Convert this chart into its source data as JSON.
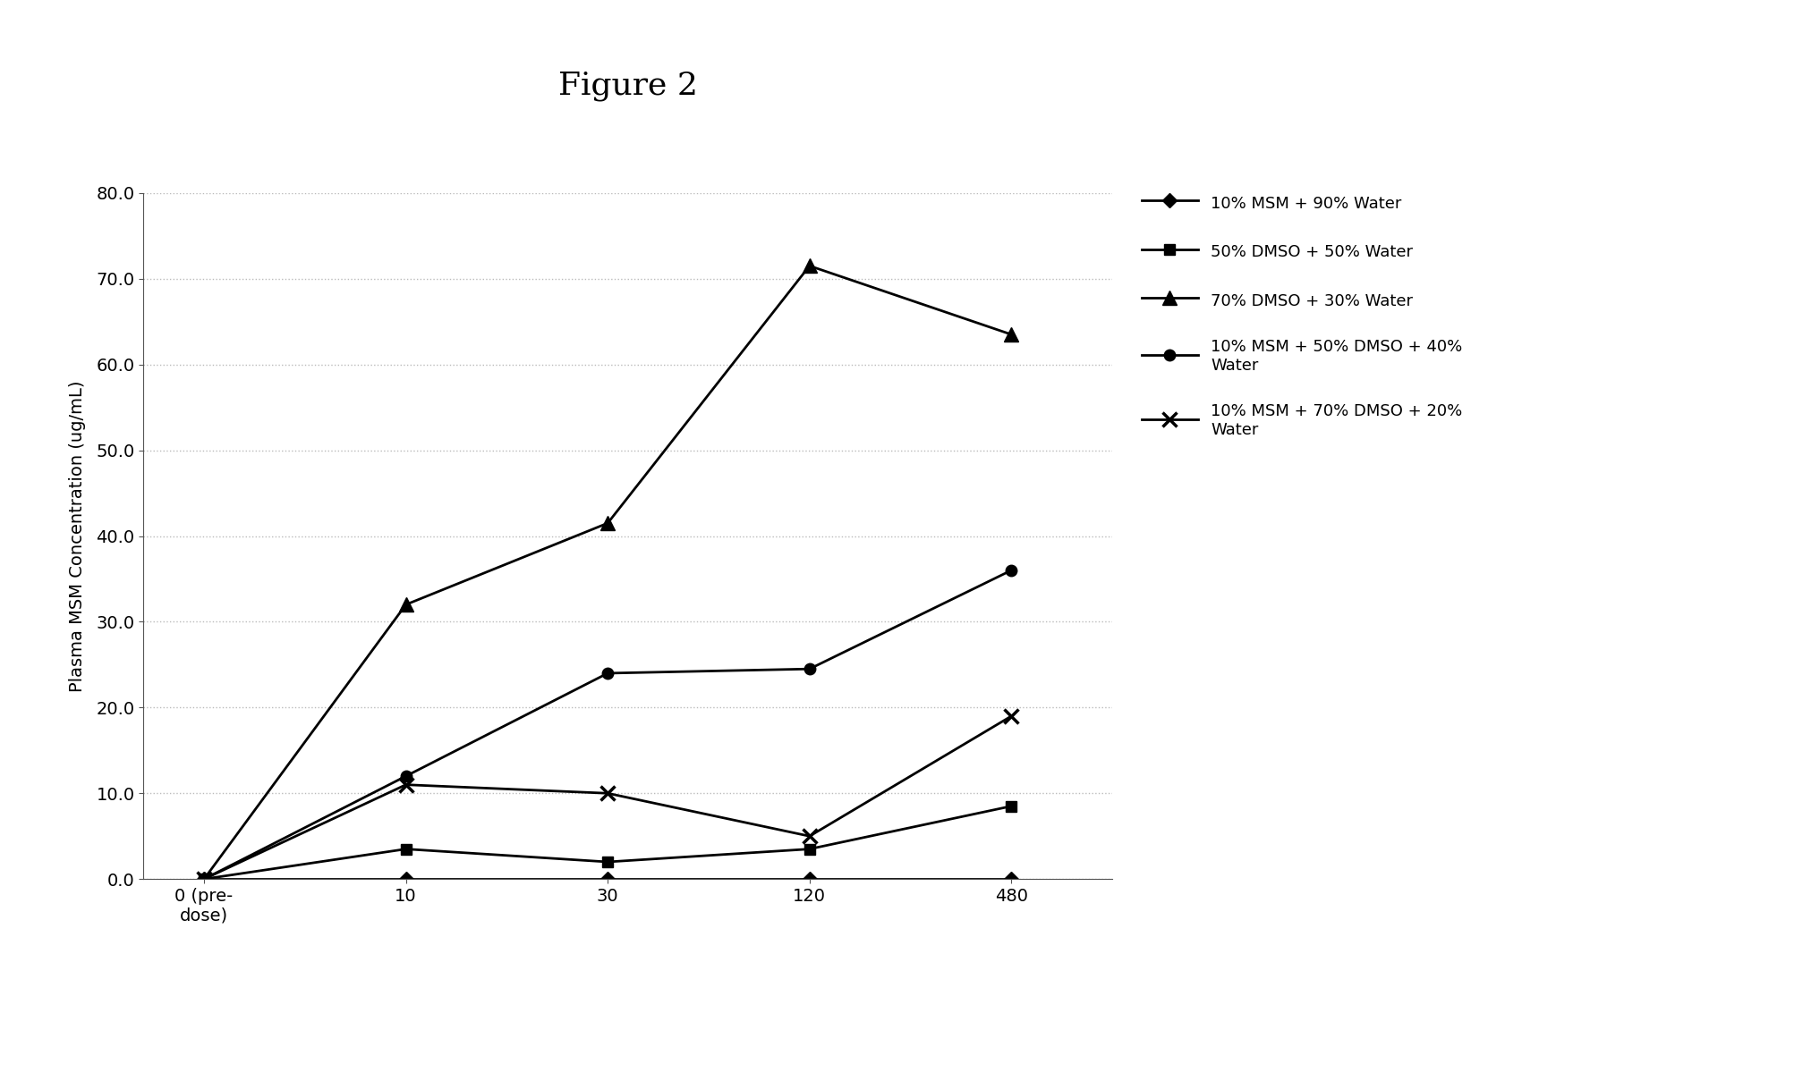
{
  "title": "Figure 2",
  "ylabel": "Plasma MSM Concentration (ug/mL)",
  "x_labels": [
    "0 (pre-\ndose)",
    "10",
    "30",
    "120",
    "480"
  ],
  "x_values": [
    0,
    1,
    2,
    3,
    4
  ],
  "ylim": [
    0,
    80.0
  ],
  "yticks": [
    0.0,
    10.0,
    20.0,
    30.0,
    40.0,
    50.0,
    60.0,
    70.0,
    80.0
  ],
  "series": [
    {
      "label": "10% MSM + 90% Water",
      "values": [
        0.0,
        0.0,
        0.0,
        0.0,
        0.0
      ],
      "marker": "D",
      "linestyle": "-"
    },
    {
      "label": "50% DMSO + 50% Water",
      "values": [
        0.0,
        3.5,
        2.0,
        3.5,
        8.5
      ],
      "marker": "s",
      "linestyle": "-"
    },
    {
      "label": "70% DMSO + 30% Water",
      "values": [
        0.0,
        32.0,
        41.5,
        71.5,
        63.5
      ],
      "marker": "^",
      "linestyle": "-"
    },
    {
      "label": "10% MSM + 50% DMSO + 40%\nWater",
      "values": [
        0.0,
        12.0,
        24.0,
        24.5,
        36.0
      ],
      "marker": "o",
      "linestyle": "-"
    },
    {
      "label": "10% MSM + 70% DMSO + 20%\nWater",
      "values": [
        0.0,
        11.0,
        10.0,
        5.0,
        19.0
      ],
      "marker": "x",
      "linestyle": "-"
    }
  ],
  "background_color": "#ffffff",
  "title_fontsize": 26,
  "axis_label_fontsize": 14,
  "tick_fontsize": 14,
  "legend_fontsize": 13
}
